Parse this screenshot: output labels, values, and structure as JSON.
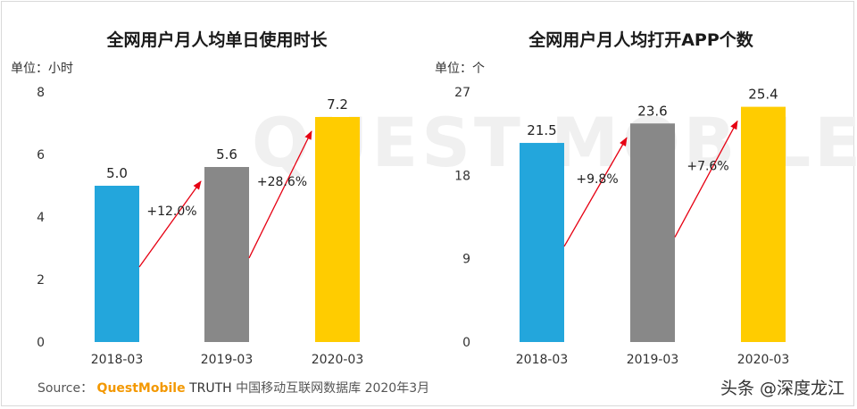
{
  "footer": {
    "source_label": "Source：",
    "brand": "QuestMobile",
    "product": "TRUTH",
    "description": "中国移动互联网数据库 2020年3月"
  },
  "credit": "头条 @深度龙江",
  "watermark": "QUEST MOBILE",
  "chart_data": [
    {
      "type": "bar",
      "title": "全网用户月人均单日使用时长",
      "unit": "单位：小时",
      "categories": [
        "2018-03",
        "2019-03",
        "2020-03"
      ],
      "values": [
        5.0,
        5.6,
        7.2
      ],
      "value_labels": [
        "5.0",
        "5.6",
        "7.2"
      ],
      "colors": [
        "#23a6dc",
        "#888888",
        "#ffcc00"
      ],
      "ylim": [
        0,
        8
      ],
      "yticks": [
        0,
        2,
        4,
        6,
        8
      ],
      "growth": [
        "+12.0%",
        "+28.6%"
      ],
      "arrow_color": "#e60012",
      "grid": false
    },
    {
      "type": "bar",
      "title": "全网用户月人均打开APP个数",
      "unit": "单位：个",
      "categories": [
        "2018-03",
        "2019-03",
        "2020-03"
      ],
      "values": [
        21.5,
        23.6,
        25.4
      ],
      "value_labels": [
        "21.5",
        "23.6",
        "25.4"
      ],
      "colors": [
        "#23a6dc",
        "#888888",
        "#ffcc00"
      ],
      "ylim": [
        0,
        27
      ],
      "yticks": [
        0,
        9,
        18,
        27
      ],
      "growth": [
        "+9.8%",
        "+7.6%"
      ],
      "arrow_color": "#e60012",
      "grid": false
    }
  ]
}
